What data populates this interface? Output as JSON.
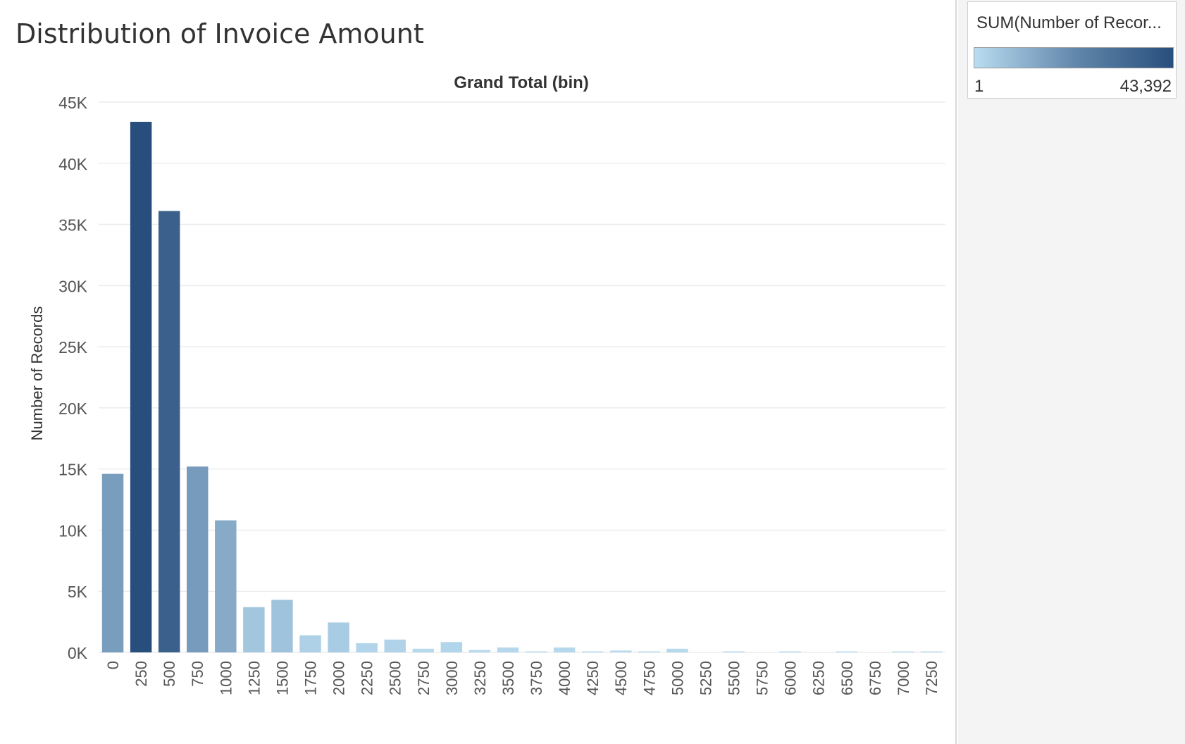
{
  "title": "Distribution of Invoice Amount",
  "legend": {
    "title": "SUM(Number of Recor...",
    "min_label": "1",
    "max_label": "43,392",
    "min_value": 1,
    "max_value": 43392,
    "color_low": "#b9dcf0",
    "color_high": "#284e7d"
  },
  "chart_data": {
    "type": "bar",
    "title": "Grand Total (bin)",
    "xlabel": "",
    "ylabel": "Number of Records",
    "ylim": [
      0,
      45000
    ],
    "y_ticks": [
      "0K",
      "5K",
      "10K",
      "15K",
      "20K",
      "25K",
      "30K",
      "35K",
      "40K",
      "45K"
    ],
    "y_tick_values": [
      0,
      5000,
      10000,
      15000,
      20000,
      25000,
      30000,
      35000,
      40000,
      45000
    ],
    "grid": true,
    "legend": "color-ramp top-right",
    "categories": [
      "0",
      "250",
      "500",
      "750",
      "1000",
      "1250",
      "1500",
      "1750",
      "2000",
      "2250",
      "2500",
      "2750",
      "3000",
      "3250",
      "3500",
      "3750",
      "4000",
      "4250",
      "4500",
      "4750",
      "5000",
      "5250",
      "5500",
      "5750",
      "6000",
      "6250",
      "6500",
      "6750",
      "7000",
      "7250"
    ],
    "values": [
      14600,
      43392,
      36100,
      15200,
      10800,
      3700,
      4300,
      1400,
      2450,
      750,
      1050,
      300,
      850,
      200,
      400,
      80,
      400,
      60,
      150,
      40,
      300,
      0,
      40,
      0,
      30,
      0,
      20,
      0,
      20,
      1
    ]
  }
}
